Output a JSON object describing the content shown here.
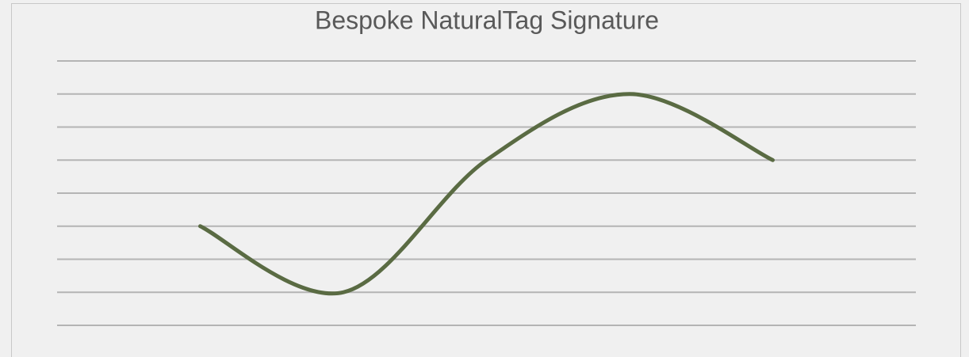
{
  "chart_data": {
    "type": "line",
    "title": "Bespoke NaturalTag Signature",
    "x": [
      1,
      2,
      3,
      4,
      5
    ],
    "xlim": [
      0,
      6
    ],
    "series": [
      {
        "color": "#5a6b43",
        "values": [
          3,
          1,
          5,
          7,
          5
        ]
      }
    ],
    "ylim": [
      0,
      8
    ],
    "yticks": [
      0,
      1,
      2,
      3,
      4,
      5,
      6,
      7,
      8
    ],
    "grid": true,
    "smooth": true
  }
}
